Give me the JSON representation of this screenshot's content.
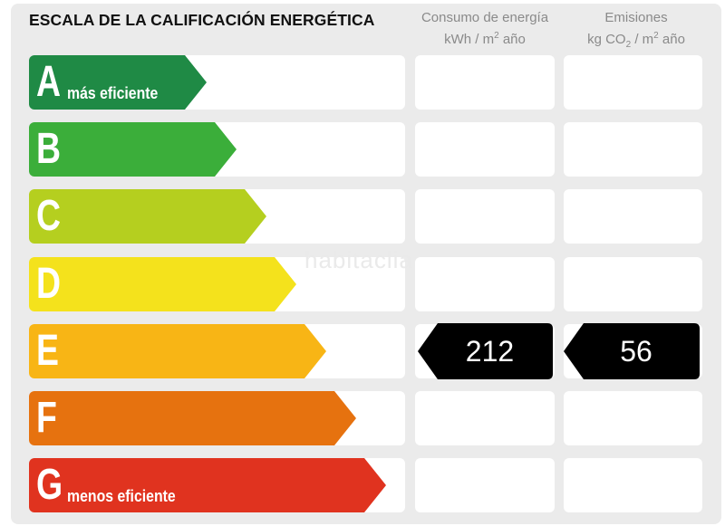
{
  "header": {
    "title": "ESCALA DE LA CALIFICACIÓN ENERGÉTICA",
    "col_energy_line1": "Consumo de energía",
    "col_energy_unit_a": "kWh / m",
    "col_energy_unit_sup": "2",
    "col_energy_unit_b": " año",
    "col_emissions_line1": "Emisiones",
    "col_emissions_unit_a": "kg CO",
    "col_emissions_unit_sub": "2",
    "col_emissions_unit_b": " / m",
    "col_emissions_unit_sup": "2",
    "col_emissions_unit_c": " año"
  },
  "scale": [
    {
      "letter": "A",
      "sub": "más eficiente",
      "color": "#1f8a45"
    },
    {
      "letter": "B",
      "sub": "",
      "color": "#3bae3a"
    },
    {
      "letter": "C",
      "sub": "",
      "color": "#b5cf1f"
    },
    {
      "letter": "D",
      "sub": "",
      "color": "#f4e21c"
    },
    {
      "letter": "E",
      "sub": "",
      "color": "#f8b515"
    },
    {
      "letter": "F",
      "sub": "",
      "color": "#e6720f"
    },
    {
      "letter": "G",
      "sub": "menos eficiente",
      "color": "#e0331f"
    }
  ],
  "rating": {
    "class": "E",
    "energy_value": "212",
    "emissions_value": "56",
    "badge_color": "#000000"
  },
  "watermark": "habitaclia"
}
